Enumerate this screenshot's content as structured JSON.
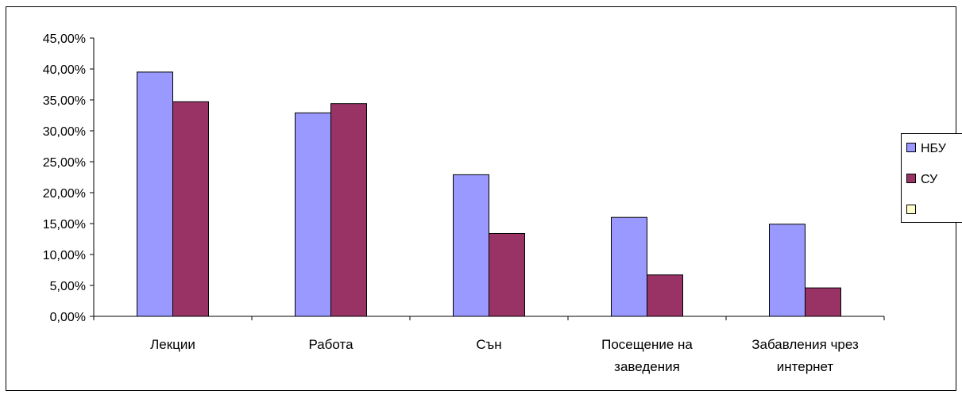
{
  "chart_data": {
    "type": "bar",
    "categories": [
      [
        "Лекции"
      ],
      [
        "Работа"
      ],
      [
        "Сън"
      ],
      [
        "Посещение на",
        "заведения"
      ],
      [
        "Забавления чрез",
        "интернет"
      ]
    ],
    "series": [
      {
        "name": "НБУ",
        "color": "#9999ff",
        "values": [
          39.5,
          32.9,
          22.9,
          16.0,
          14.9
        ]
      },
      {
        "name": "СУ",
        "color": "#993366",
        "values": [
          34.7,
          34.4,
          13.4,
          6.7,
          4.6
        ]
      }
    ],
    "legend_extra": {
      "name": "",
      "color": "#ffffcc"
    },
    "yticks": [
      "0,00%",
      "5,00%",
      "10,00%",
      "15,00%",
      "20,00%",
      "25,00%",
      "30,00%",
      "35,00%",
      "40,00%",
      "45,00%"
    ],
    "ylim": [
      0,
      45
    ],
    "title": "",
    "xlabel": "",
    "ylabel": "",
    "legend_position": "right",
    "grid": false
  }
}
